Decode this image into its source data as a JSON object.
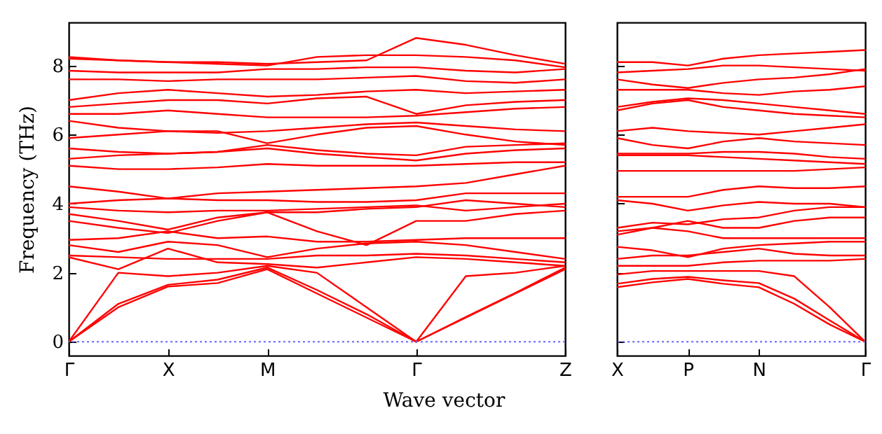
{
  "chart_data": [
    {
      "type": "line",
      "xlabel": "Wave vector",
      "ylabel": "Frequency (THz)",
      "categories": [
        "Γ",
        null,
        "X",
        null,
        "M",
        null,
        null,
        "Γ",
        null,
        null,
        "Z"
      ],
      "ylim": [
        -0.4,
        9.25
      ],
      "yticks": [
        0,
        2,
        4,
        6,
        8
      ],
      "ref_lines": [
        {
          "axis": "y",
          "value": 0,
          "color": "#6666ff",
          "line_style": "dotted"
        }
      ],
      "series": [
        {
          "color": "#ff0000",
          "values": [
            0,
            1.0,
            1.6,
            1.7,
            2.1,
            1.4,
            0.7,
            0,
            0.7,
            1.4,
            2.1
          ]
        },
        {
          "color": "#ff0000",
          "values": [
            0,
            1.1,
            1.65,
            1.8,
            2.15,
            1.5,
            0.8,
            0,
            0.72,
            1.42,
            2.15
          ]
        },
        {
          "color": "#ff0000",
          "values": [
            0,
            2.0,
            1.9,
            2.0,
            2.2,
            2.0,
            1.0,
            0,
            1.9,
            2.0,
            2.2
          ]
        },
        {
          "color": "#ff0000",
          "values": [
            2.45,
            2.1,
            2.7,
            2.3,
            2.25,
            2.15,
            2.3,
            2.45,
            2.4,
            2.3,
            2.2
          ]
        },
        {
          "color": "#ff0000",
          "values": [
            2.5,
            2.45,
            2.4,
            2.4,
            2.4,
            2.5,
            2.5,
            2.55,
            2.5,
            2.4,
            2.3
          ]
        },
        {
          "color": "#ff0000",
          "values": [
            2.8,
            2.6,
            2.9,
            2.8,
            2.45,
            2.7,
            2.85,
            2.9,
            2.8,
            2.6,
            2.4
          ]
        },
        {
          "color": "#ff0000",
          "values": [
            2.95,
            3.0,
            3.2,
            3.0,
            3.05,
            2.9,
            2.9,
            2.95,
            3.0,
            3.0,
            3.0
          ]
        },
        {
          "color": "#ff0000",
          "values": [
            3.5,
            3.3,
            3.15,
            3.5,
            3.75,
            3.2,
            2.8,
            3.5,
            3.5,
            3.7,
            3.8
          ]
        },
        {
          "color": "#ff0000",
          "values": [
            3.7,
            3.5,
            3.25,
            3.6,
            3.75,
            3.75,
            3.85,
            3.9,
            4.1,
            4.0,
            3.9
          ]
        },
        {
          "color": "#ff0000",
          "values": [
            3.9,
            3.8,
            3.75,
            3.8,
            3.8,
            3.85,
            3.9,
            3.95,
            3.8,
            3.9,
            4.0
          ]
        },
        {
          "color": "#ff0000",
          "values": [
            4.0,
            4.1,
            4.15,
            4.1,
            4.1,
            4.05,
            4.05,
            4.1,
            4.3,
            4.3,
            4.3
          ]
        },
        {
          "color": "#ff0000",
          "values": [
            4.5,
            4.35,
            4.15,
            4.3,
            4.35,
            4.4,
            4.45,
            4.5,
            4.6,
            4.85,
            5.1
          ]
        },
        {
          "color": "#ff0000",
          "values": [
            5.1,
            5.0,
            5.0,
            5.05,
            5.15,
            5.1,
            5.1,
            5.1,
            5.15,
            5.2,
            5.2
          ]
        },
        {
          "color": "#ff0000",
          "values": [
            5.3,
            5.4,
            5.45,
            5.5,
            5.6,
            5.45,
            5.35,
            5.25,
            5.45,
            5.55,
            5.6
          ]
        },
        {
          "color": "#ff0000",
          "values": [
            5.6,
            5.5,
            5.45,
            5.5,
            5.7,
            5.55,
            5.45,
            5.4,
            5.65,
            5.7,
            5.75
          ]
        },
        {
          "color": "#ff0000",
          "values": [
            5.9,
            6.0,
            6.1,
            6.1,
            5.75,
            6.0,
            6.2,
            6.25,
            6.0,
            5.8,
            5.7
          ]
        },
        {
          "color": "#ff0000",
          "values": [
            6.4,
            6.2,
            6.1,
            6.05,
            6.1,
            6.2,
            6.3,
            6.35,
            6.25,
            6.15,
            6.1
          ]
        },
        {
          "color": "#ff0000",
          "values": [
            6.6,
            6.6,
            6.7,
            6.6,
            6.5,
            6.5,
            6.5,
            6.55,
            6.65,
            6.75,
            6.8
          ]
        },
        {
          "color": "#ff0000",
          "values": [
            6.8,
            6.9,
            7.0,
            7.0,
            6.9,
            7.05,
            7.1,
            6.6,
            6.85,
            6.95,
            7.0
          ]
        },
        {
          "color": "#ff0000",
          "values": [
            7.0,
            7.2,
            7.3,
            7.2,
            7.1,
            7.15,
            7.25,
            7.3,
            7.2,
            7.25,
            7.3
          ]
        },
        {
          "color": "#ff0000",
          "values": [
            7.6,
            7.6,
            7.55,
            7.6,
            7.6,
            7.6,
            7.65,
            7.7,
            7.55,
            7.5,
            7.6
          ]
        },
        {
          "color": "#ff0000",
          "values": [
            7.85,
            7.8,
            7.8,
            7.8,
            7.9,
            7.9,
            7.95,
            7.95,
            7.85,
            7.8,
            7.9
          ]
        },
        {
          "color": "#ff0000",
          "values": [
            8.2,
            8.15,
            8.1,
            8.05,
            8.0,
            8.25,
            8.3,
            8.3,
            8.25,
            8.15,
            7.95
          ]
        },
        {
          "color": "#ff0000",
          "values": [
            8.25,
            8.15,
            8.1,
            8.1,
            8.05,
            8.1,
            8.15,
            8.8,
            8.6,
            8.3,
            8.05
          ]
        }
      ]
    },
    {
      "type": "line",
      "categories": [
        "X",
        null,
        "P",
        null,
        "N",
        null,
        null,
        "Γ"
      ],
      "ylim": [
        -0.4,
        9.25
      ],
      "yticks": [
        0,
        2,
        4,
        6,
        8
      ],
      "tick_labels": "x",
      "ref_lines": [
        {
          "axis": "y",
          "value": 0,
          "color": "#6666ff",
          "line_style": "dotted"
        }
      ],
      "series": [
        {
          "color": "#ff0000",
          "values": [
            1.58,
            1.72,
            1.82,
            1.68,
            1.58,
            1.1,
            0.5,
            0
          ]
        },
        {
          "color": "#ff0000",
          "values": [
            1.68,
            1.82,
            1.88,
            1.78,
            1.7,
            1.25,
            0.62,
            0
          ]
        },
        {
          "color": "#ff0000",
          "values": [
            1.95,
            2.05,
            2.05,
            2.05,
            2.05,
            1.9,
            1.0,
            0
          ]
        },
        {
          "color": "#ff0000",
          "values": [
            2.2,
            2.2,
            2.2,
            2.3,
            2.35,
            2.35,
            2.35,
            2.4
          ]
        },
        {
          "color": "#ff0000",
          "values": [
            2.4,
            2.5,
            2.5,
            2.6,
            2.7,
            2.55,
            2.5,
            2.5
          ]
        },
        {
          "color": "#ff0000",
          "values": [
            2.75,
            2.65,
            2.45,
            2.7,
            2.8,
            2.85,
            2.9,
            2.9
          ]
        },
        {
          "color": "#ff0000",
          "values": [
            3.1,
            3.3,
            3.2,
            3.0,
            3.0,
            3.0,
            3.0,
            3.0
          ]
        },
        {
          "color": "#ff0000",
          "values": [
            3.2,
            3.3,
            3.5,
            3.3,
            3.3,
            3.5,
            3.6,
            3.6
          ]
        },
        {
          "color": "#ff0000",
          "values": [
            3.3,
            3.45,
            3.4,
            3.55,
            3.6,
            3.8,
            3.9,
            3.9
          ]
        },
        {
          "color": "#ff0000",
          "values": [
            4.1,
            4.0,
            3.8,
            3.95,
            4.05,
            4.0,
            4.0,
            3.9
          ]
        },
        {
          "color": "#ff0000",
          "values": [
            4.2,
            4.2,
            4.2,
            4.4,
            4.5,
            4.45,
            4.45,
            4.5
          ]
        },
        {
          "color": "#ff0000",
          "values": [
            4.95,
            4.95,
            4.95,
            4.95,
            4.95,
            4.95,
            5.0,
            5.05
          ]
        },
        {
          "color": "#ff0000",
          "values": [
            5.4,
            5.4,
            5.4,
            5.35,
            5.3,
            5.25,
            5.2,
            5.15
          ]
        },
        {
          "color": "#ff0000",
          "values": [
            5.45,
            5.45,
            5.45,
            5.5,
            5.5,
            5.45,
            5.35,
            5.3
          ]
        },
        {
          "color": "#ff0000",
          "values": [
            5.9,
            5.7,
            5.6,
            5.8,
            5.9,
            5.8,
            5.75,
            5.7
          ]
        },
        {
          "color": "#ff0000",
          "values": [
            6.1,
            6.2,
            6.1,
            6.05,
            6.0,
            6.1,
            6.2,
            6.3
          ]
        },
        {
          "color": "#ff0000",
          "values": [
            6.7,
            6.9,
            7.0,
            6.8,
            6.7,
            6.6,
            6.55,
            6.5
          ]
        },
        {
          "color": "#ff0000",
          "values": [
            6.8,
            6.95,
            7.05,
            7.0,
            6.9,
            6.8,
            6.7,
            6.6
          ]
        },
        {
          "color": "#ff0000",
          "values": [
            7.3,
            7.3,
            7.3,
            7.2,
            7.15,
            7.25,
            7.3,
            7.4
          ]
        },
        {
          "color": "#ff0000",
          "values": [
            7.6,
            7.45,
            7.35,
            7.5,
            7.6,
            7.65,
            7.75,
            7.9
          ]
        },
        {
          "color": "#ff0000",
          "values": [
            7.8,
            7.85,
            7.9,
            8.0,
            8.0,
            7.95,
            7.9,
            7.85
          ]
        },
        {
          "color": "#ff0000",
          "values": [
            8.1,
            8.1,
            8.0,
            8.2,
            8.3,
            8.35,
            8.4,
            8.45
          ]
        }
      ]
    }
  ]
}
